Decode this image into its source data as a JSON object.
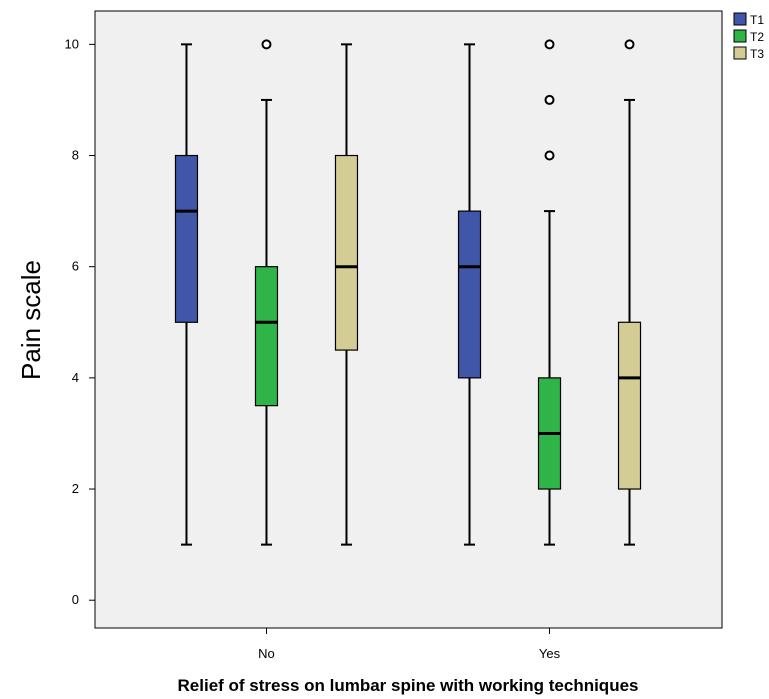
{
  "chart_data": {
    "type": "box",
    "xlabel": "Relief of stress on lumbar spine with working techniques",
    "ylabel": "Pain scale",
    "categories": [
      "No",
      "Yes"
    ],
    "ylim": [
      -0.5,
      10.6
    ],
    "yticks": [
      0,
      2,
      4,
      6,
      8,
      10
    ],
    "grid": false,
    "legend_position": "top-right",
    "series": [
      {
        "name": "T1",
        "color": "#4056a8",
        "boxes": [
          {
            "min": 1,
            "q1": 5,
            "median": 7,
            "q3": 8,
            "max": 10,
            "outliers": []
          },
          {
            "min": 1,
            "q1": 4,
            "median": 6,
            "q3": 7,
            "max": 10,
            "outliers": []
          }
        ]
      },
      {
        "name": "T2",
        "color": "#2fb547",
        "boxes": [
          {
            "min": 1,
            "q1": 3.5,
            "median": 5,
            "q3": 6,
            "max": 9,
            "outliers": [
              10
            ]
          },
          {
            "min": 1,
            "q1": 2,
            "median": 3,
            "q3": 4,
            "max": 7,
            "outliers": [
              8,
              9,
              10
            ]
          }
        ]
      },
      {
        "name": "T3",
        "color": "#d4cc95",
        "boxes": [
          {
            "min": 1,
            "q1": 4.5,
            "median": 6,
            "q3": 8,
            "max": 10,
            "outliers": []
          },
          {
            "min": 1,
            "q1": 2,
            "median": 4,
            "q3": 5,
            "max": 9,
            "outliers": [
              10
            ]
          }
        ]
      }
    ]
  }
}
